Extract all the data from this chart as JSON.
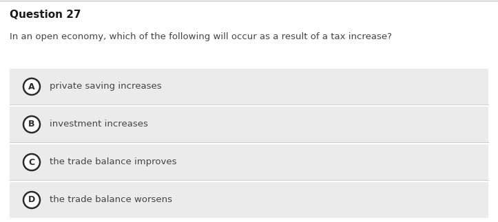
{
  "title": "Question 27",
  "question": "In an open economy, which of the following will occur as a result of a tax increase?",
  "options": [
    {
      "label": "A",
      "text": "private saving increases"
    },
    {
      "label": "B",
      "text": "investment increases"
    },
    {
      "label": "C",
      "text": "the trade balance improves"
    },
    {
      "label": "D",
      "text": "the trade balance worsens"
    }
  ],
  "bg_color": "#ffffff",
  "option_bg_color": "#ebebeb",
  "title_color": "#1a1a1a",
  "question_color": "#444444",
  "option_text_color": "#444444",
  "circle_edge_color": "#2a2a2a",
  "circle_fill_color": "#ffffff",
  "separator_color": "#d0d0d0",
  "top_border_color": "#c8c8c8",
  "title_fontsize": 11,
  "question_fontsize": 9.5,
  "option_fontsize": 9.5,
  "label_fontsize": 9
}
